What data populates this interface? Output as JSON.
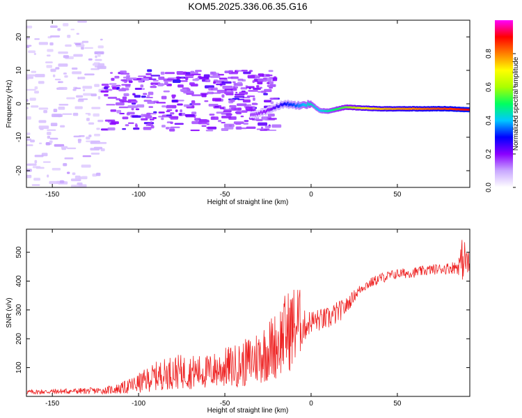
{
  "figure_title": "KOM5.2025.336.06.35.G16",
  "chart_data": [
    {
      "type": "heatmap",
      "title": "KOM5.2025.336.06.35.G16",
      "xlabel": "Height of straight line (km)",
      "ylabel": "Frequency (Hz)",
      "xlim": [
        -165,
        92
      ],
      "ylim": [
        -25,
        25
      ],
      "xticks": [
        -150,
        -100,
        -50,
        0,
        50
      ],
      "xtick_labels": [
        "-150",
        "-100",
        "-50",
        "0",
        "50"
      ],
      "yticks": [
        -20,
        -10,
        0,
        10,
        20
      ],
      "ytick_labels": [
        "-20",
        "-10",
        "0",
        "10",
        "20"
      ],
      "colorbar": {
        "label": "Normalized spectral amplitude",
        "range": [
          0,
          1
        ],
        "ticks": [
          0.0,
          0.2,
          0.4,
          0.6,
          0.8
        ],
        "tick_labels": [
          "0.0",
          "0.2",
          "0.4",
          "0.6",
          "0.8"
        ],
        "colormap": [
          "#ffffff",
          "#c9a8ff",
          "#8a00ff",
          "#0000ff",
          "#00c8ff",
          "#00ff60",
          "#aaff00",
          "#ffff00",
          "#ff8000",
          "#ff0000",
          "#ff00ff"
        ]
      },
      "ridge": {
        "x": [
          -35,
          -25,
          -15,
          -8,
          0,
          5,
          10,
          20,
          30,
          40,
          60,
          80,
          92
        ],
        "y": [
          -3.5,
          -2,
          0,
          -0.5,
          0,
          -2,
          -2.2,
          -1,
          -1.3,
          -1.5,
          -1.5,
          -1.5,
          -1.8
        ],
        "amplitude": [
          0.15,
          0.2,
          0.3,
          0.35,
          0.45,
          0.4,
          0.45,
          0.55,
          0.7,
          0.75,
          0.8,
          0.85,
          0.9
        ]
      },
      "noise_regions": [
        {
          "x_range": [
            -165,
            -120
          ],
          "y_range": [
            -25,
            25
          ],
          "amplitude": 0.05
        },
        {
          "x_range": [
            -120,
            -20
          ],
          "y_range": [
            -8,
            10
          ],
          "amplitude": 0.12
        }
      ]
    },
    {
      "type": "line",
      "xlabel": "Height of straight line (km)",
      "ylabel": "SNR (v/v)",
      "xlim": [
        -165,
        92
      ],
      "ylim": [
        0,
        580
      ],
      "xticks": [
        -150,
        -100,
        -50,
        0,
        50
      ],
      "xtick_labels": [
        "-150",
        "-100",
        "-50",
        "0",
        "50"
      ],
      "yticks": [
        100,
        200,
        300,
        400,
        500
      ],
      "ytick_labels": [
        "100",
        "200",
        "300",
        "400",
        "500"
      ],
      "series": [
        {
          "name": "SNR",
          "color": "#ee2222",
          "x": [
            -165,
            -140,
            -120,
            -110,
            -100,
            -90,
            -80,
            -70,
            -60,
            -50,
            -40,
            -30,
            -20,
            -15,
            -10,
            -7,
            -5,
            0,
            10,
            15,
            20,
            25,
            30,
            40,
            50,
            60,
            70,
            80,
            85,
            88,
            90,
            92
          ],
          "y": [
            15,
            18,
            20,
            28,
            45,
            70,
            85,
            85,
            85,
            100,
            110,
            140,
            180,
            220,
            240,
            260,
            240,
            260,
            270,
            290,
            310,
            350,
            380,
            410,
            425,
            430,
            440,
            445,
            450,
            480,
            470,
            450
          ],
          "noise_amplitude": [
            8,
            10,
            12,
            20,
            35,
            50,
            60,
            60,
            60,
            70,
            80,
            100,
            120,
            140,
            150,
            140,
            60,
            40,
            40,
            40,
            30,
            20,
            18,
            18,
            18,
            18,
            18,
            20,
            25,
            80,
            60,
            40
          ]
        }
      ]
    }
  ]
}
